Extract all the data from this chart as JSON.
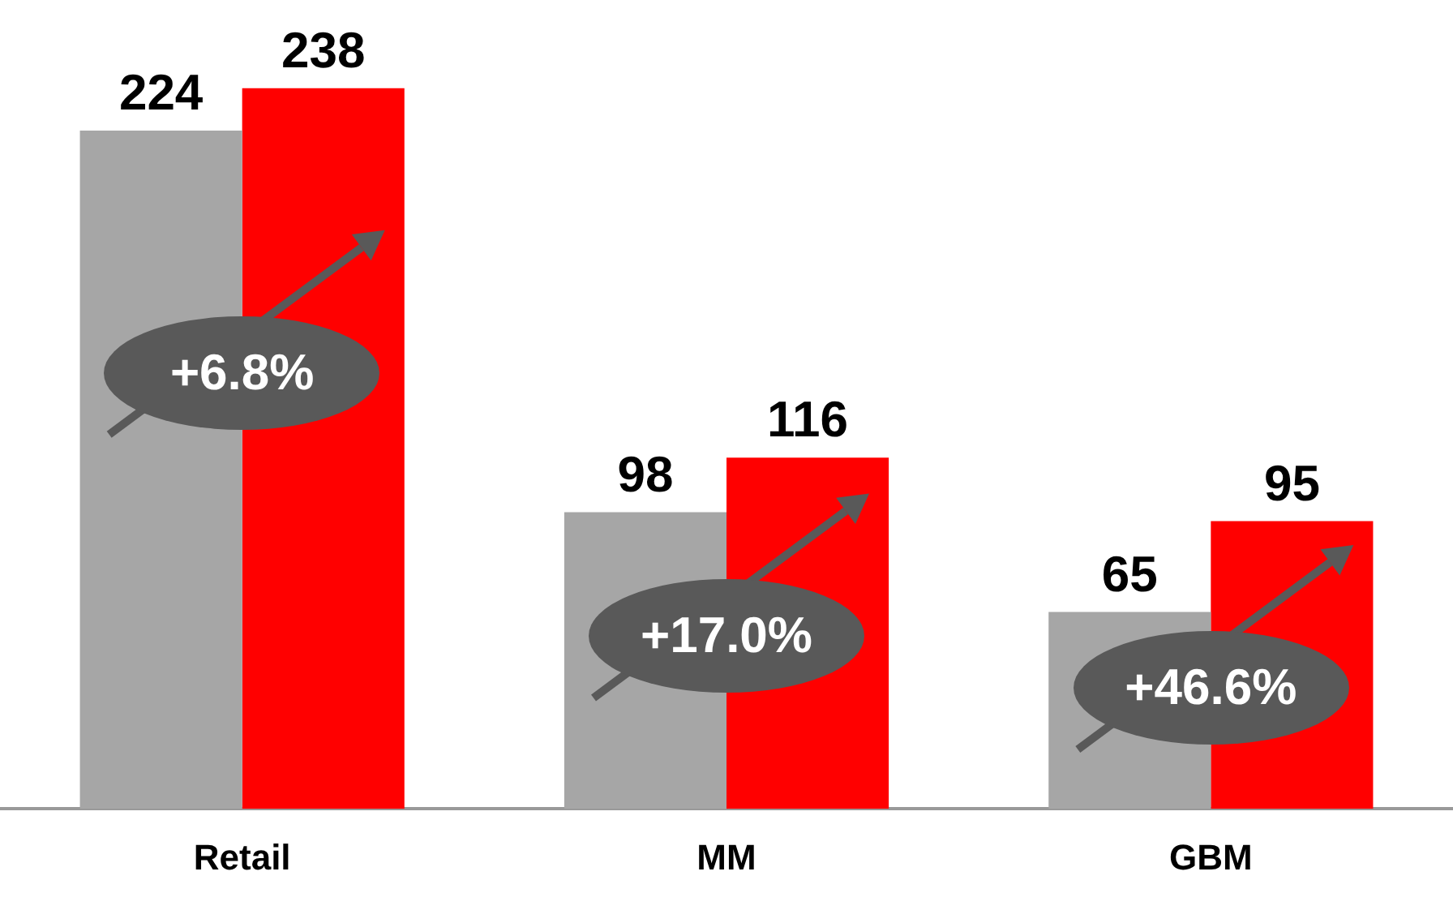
{
  "chart_data": {
    "type": "bar",
    "categories": [
      "Retail",
      "MM",
      "GBM"
    ],
    "series": [
      {
        "color": "#a6a6a6",
        "values": [
          224,
          98,
          65
        ]
      },
      {
        "color": "#ff0000",
        "values": [
          238,
          116,
          95
        ]
      }
    ],
    "data_labels": true,
    "grid": false,
    "legend": false,
    "annotations": [
      {
        "text": "+6.8%",
        "x": "Retail",
        "y": 144
      },
      {
        "text": "+17.0%",
        "x": "MM",
        "y": 57
      },
      {
        "text": "+46.6%",
        "x": "GBM",
        "y": 40
      }
    ]
  }
}
